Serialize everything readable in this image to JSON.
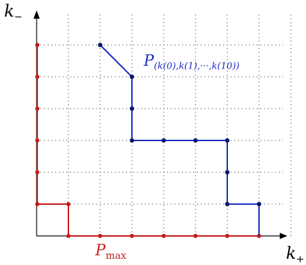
{
  "labels": {
    "y_axis": "k",
    "y_axis_sub": "−",
    "x_axis": "k",
    "x_axis_sub": "+",
    "pmax_main": "P",
    "pmax_sub": "max",
    "path_main": "P",
    "path_sub": "(k(0),k(1),···,k(10))"
  },
  "grid": {
    "cols": 8,
    "rows": 6
  },
  "colors": {
    "axis": "#000000",
    "grid": "#333333",
    "pmax": "#c41a1a",
    "path_line": "#1a2ac4",
    "path_point": "#0a1a6e"
  },
  "pmax_path": [
    [
      0,
      0
    ],
    [
      0,
      1
    ],
    [
      0,
      2
    ],
    [
      0,
      3
    ],
    [
      0,
      4
    ],
    [
      0,
      5
    ],
    [
      0,
      6
    ],
    [
      0,
      6
    ],
    [
      0,
      1
    ],
    [
      1,
      1
    ],
    [
      1,
      0
    ],
    [
      2,
      0
    ],
    [
      3,
      0
    ],
    [
      4,
      0
    ],
    [
      5,
      0
    ],
    [
      6,
      0
    ],
    [
      7,
      0
    ]
  ],
  "pmax_vertices": [
    [
      0,
      6
    ],
    [
      0,
      5
    ],
    [
      0,
      4
    ],
    [
      0,
      3
    ],
    [
      0,
      2
    ],
    [
      0,
      1
    ],
    [
      1,
      1
    ],
    [
      1,
      0
    ],
    [
      2,
      0
    ],
    [
      3,
      0
    ],
    [
      4,
      0
    ],
    [
      5,
      0
    ],
    [
      6,
      0
    ],
    [
      7,
      0
    ]
  ],
  "lattice_path": [
    [
      2,
      6
    ],
    [
      3,
      5
    ],
    [
      3,
      4
    ],
    [
      3,
      3
    ],
    [
      4,
      3
    ],
    [
      5,
      3
    ],
    [
      6,
      3
    ],
    [
      6,
      2
    ],
    [
      6,
      1
    ],
    [
      7,
      1
    ],
    [
      7,
      0
    ]
  ],
  "lattice_vertices": [
    [
      2,
      6
    ],
    [
      3,
      5
    ],
    [
      3,
      4
    ],
    [
      3,
      3
    ],
    [
      4,
      3
    ],
    [
      5,
      3
    ],
    [
      6,
      3
    ],
    [
      6,
      2
    ],
    [
      6,
      1
    ],
    [
      7,
      1
    ]
  ]
}
